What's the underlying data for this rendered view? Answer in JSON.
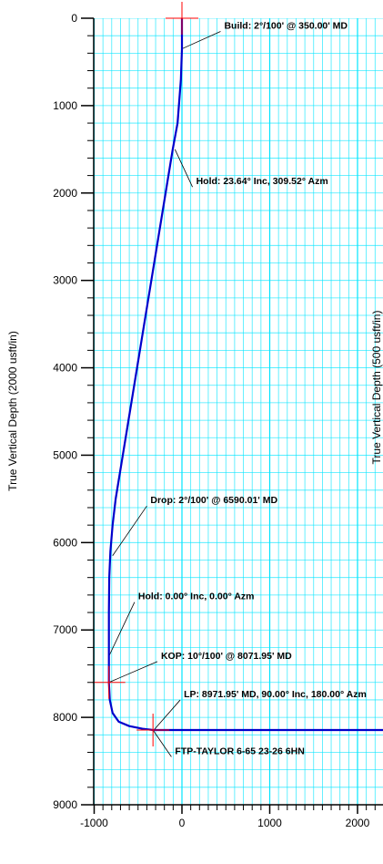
{
  "chart_data": {
    "type": "line",
    "xlim": [
      -1000,
      2300
    ],
    "ylim": [
      0,
      9000
    ],
    "x_ticks": [
      -1000,
      0,
      1000,
      2000
    ],
    "y_ticks": [
      0,
      1000,
      2000,
      3000,
      4000,
      5000,
      6000,
      7000,
      8000,
      9000
    ],
    "x_tick_labels": [
      "-1000",
      "0",
      "1000",
      "2000"
    ],
    "y_tick_labels": [
      "0",
      "1000",
      "2000",
      "3000",
      "4000",
      "5000",
      "6000",
      "7000",
      "8000",
      "9000"
    ],
    "ylabel": "True Vertical Depth (2000 usft/in)",
    "ylabel_right": "True Vertical Depth (500 usft/in)",
    "grid": true,
    "grid_color": "#00e5ff",
    "line_color": "#0000cc",
    "marker_color": "#ff0000",
    "series": [
      {
        "x": [
          0,
          0,
          -12,
          -50,
          -105,
          -170,
          -235,
          -300,
          -365,
          -430,
          -495,
          -560,
          -625,
          -690,
          -755,
          -790,
          -815,
          -828,
          -832,
          -832,
          -832,
          -832,
          -822,
          -790,
          -720,
          -600,
          -450,
          -330,
          0,
          1000,
          2300
        ],
        "y": [
          0,
          350,
          700,
          1200,
          1500,
          1900,
          2300,
          2700,
          3100,
          3500,
          3900,
          4300,
          4700,
          5100,
          5500,
          5800,
          6100,
          6400,
          6800,
          7100,
          7300,
          7600,
          7800,
          7950,
          8050,
          8100,
          8130,
          8145,
          8145,
          8145,
          8145
        ]
      }
    ],
    "markers": [
      {
        "x": 0,
        "y": 0
      },
      {
        "x": -832,
        "y": 7600
      },
      {
        "x": -330,
        "y": 8145
      }
    ],
    "annotations": [
      {
        "text": "Build: 2°/100' @ 350.00' MD",
        "x": 0,
        "y": 350,
        "label_x": 440,
        "label_y": 120
      },
      {
        "text": "Hold: 23.64° Inc, 309.52° Azm",
        "x": -80,
        "y": 1500,
        "label_x": 120,
        "label_y": 1900
      },
      {
        "text": "Drop: 2°/100' @ 6590.01' MD",
        "x": -790,
        "y": 6150,
        "label_x": -400,
        "label_y": 5550
      },
      {
        "text": "Hold: 0.00° Inc, 0.00° Azm",
        "x": -832,
        "y": 7300,
        "label_x": -540,
        "label_y": 6650
      },
      {
        "text": "KOP: 10°/100' @ 8071.95' MD",
        "x": -832,
        "y": 7600,
        "label_x": -280,
        "label_y": 7330
      },
      {
        "text": "LP:  8971.95' MD, 90.00° Inc, 180.00° Azm",
        "x": -320,
        "y": 8145,
        "label_x": -20,
        "label_y": 7770
      },
      {
        "text": "FTP-TAYLOR 6-65 23-26 6HN",
        "x": -330,
        "y": 8145,
        "label_x": -120,
        "label_y": 8420
      }
    ]
  }
}
